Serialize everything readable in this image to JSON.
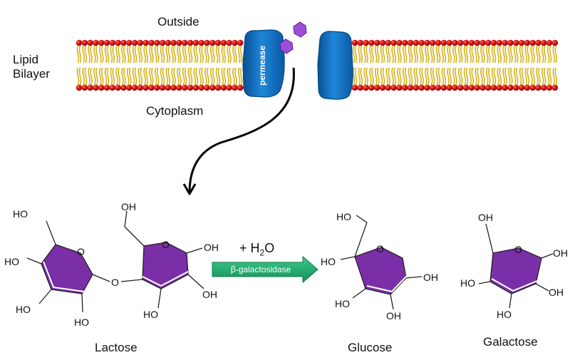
{
  "membrane": {
    "outside_label": "Outside",
    "lipid_label_line1": "Lipid",
    "lipid_label_line2": "Bilayer",
    "cytoplasm_label": "Cytoplasm",
    "permease_label": "permease",
    "colors": {
      "head": "#d21414",
      "tail": "#d6b21a",
      "protein": "#1473c9",
      "sugar": "#8a3cc8"
    }
  },
  "reaction": {
    "water_prefix": "+ H",
    "water_sub": "2",
    "water_suffix": "O",
    "enzyme_label": "β-galactosidase",
    "arrow_color": "#1fa864"
  },
  "lactose": {
    "name": "Lactose",
    "ring_color": "#7a2fa8",
    "ring1": {
      "ho_top": "HO",
      "ho_left": "HO",
      "ho_bl": "HO",
      "ho_bottom": "HO",
      "o_ring": "O"
    },
    "bridge_o": "O",
    "ring2": {
      "oh_top": "OH",
      "o_ring": "O",
      "oh_right": "OH",
      "oh_br": "OH",
      "ho_bottom": "HO"
    }
  },
  "glucose": {
    "name": "Glucose",
    "ho_top": "HO",
    "o_ring": "O",
    "ho_left": "HO",
    "oh_right": "OH",
    "ho_bl": "HO",
    "oh_bottom": "OH"
  },
  "galactose": {
    "name": "Galactose",
    "oh_top": "OH",
    "o_ring": "O",
    "oh_right": "OH",
    "ho_left": "HO",
    "oh_br": "OH",
    "ho_bottom": "HO"
  }
}
